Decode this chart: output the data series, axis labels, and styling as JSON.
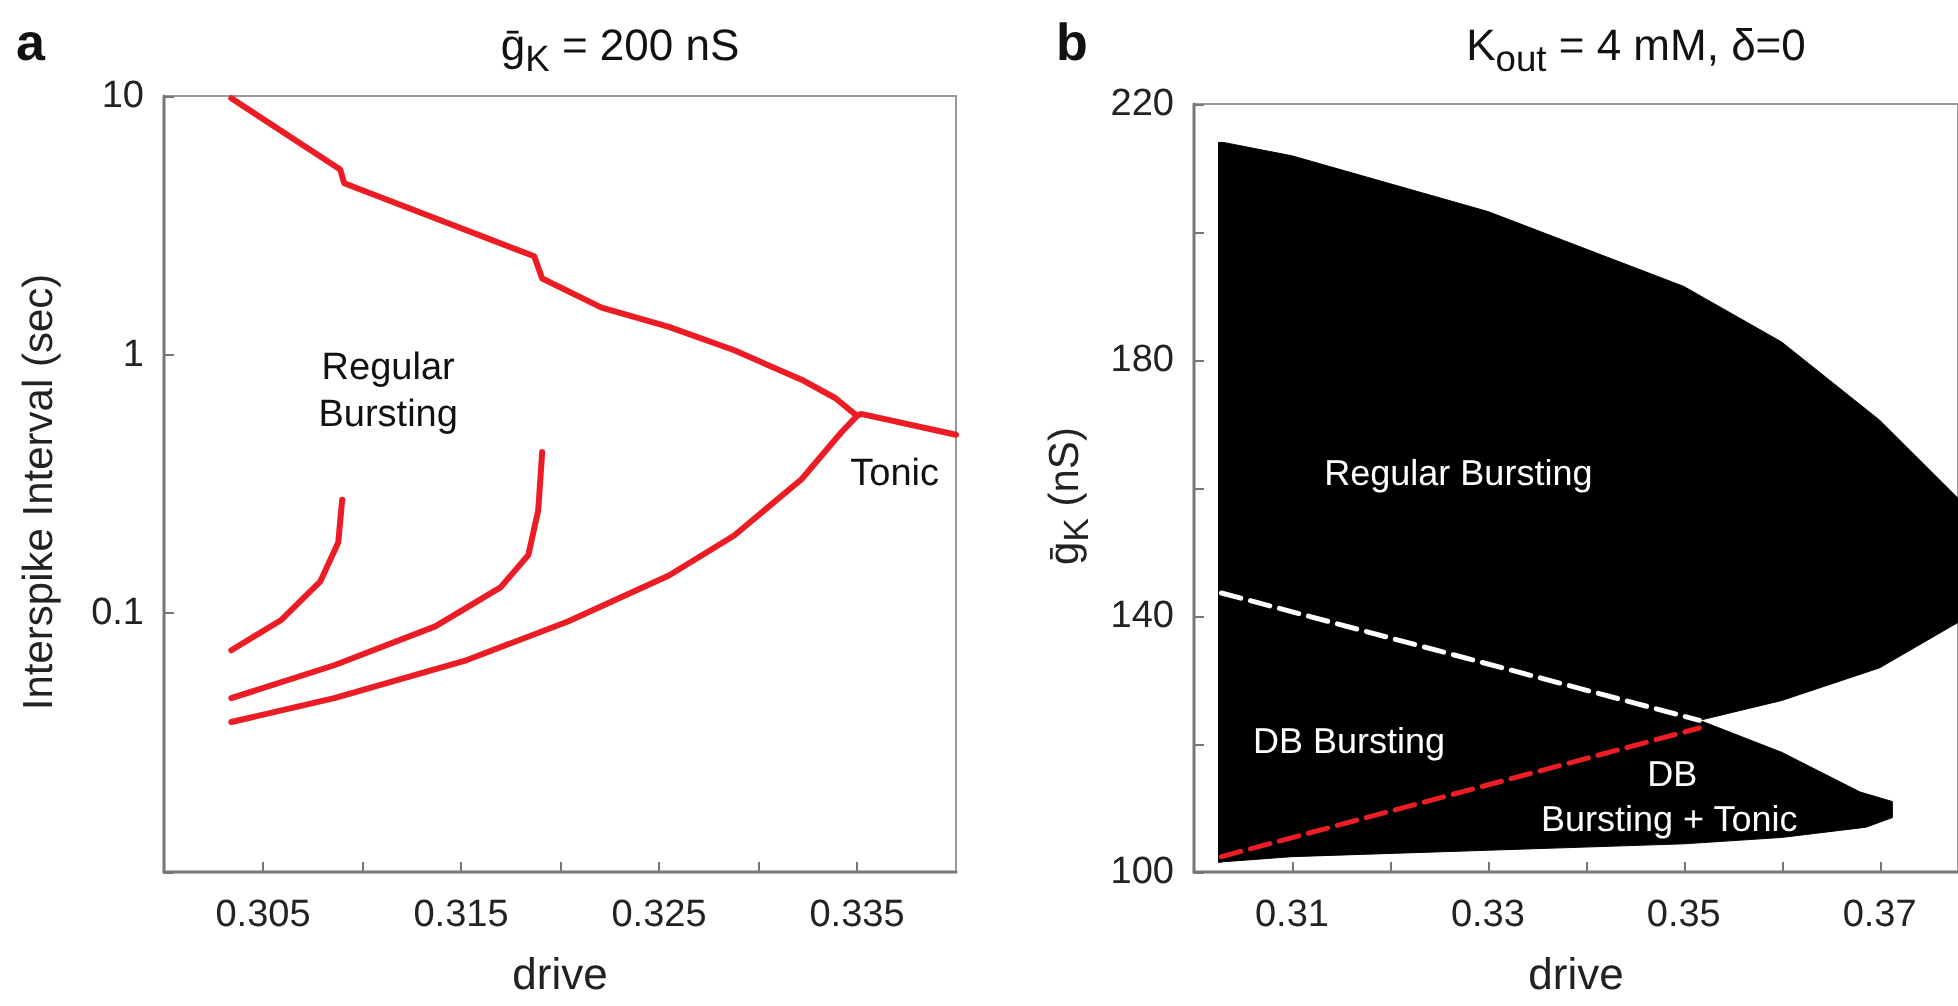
{
  "chart_data": [
    {
      "type": "line",
      "title": "ḡ$_{K}$ = 200 nS",
      "xlabel": "drive",
      "ylabel": "Interspike Interval (sec)",
      "log": "y",
      "xlim": [
        0.3,
        0.34
      ],
      "xticks": [
        0.305,
        {
          "value": 0.31,
          "label": null
        },
        0.315,
        {
          "value": 0.32,
          "label": null
        },
        0.325,
        {
          "value": 0.33,
          "label": null
        },
        0.335
      ],
      "ylim": [
        0.01,
        10
      ],
      "yticks": [
        {
          "value": 0.01,
          "label": null
        },
        0.1,
        1,
        10
      ],
      "annotations": [
        "a",
        "Regular",
        "Bursting",
        "Tonic"
      ],
      "series": [
        {
          "color": "#ec1c24",
          "x": [
            0.3034,
            0.3089,
            0.3091,
            0.3187,
            0.3191,
            0.3221,
            0.3255,
            0.3288,
            0.3322,
            0.3339,
            0.335,
            0.3352,
            0.34
          ],
          "values": [
            9.8,
            5.2,
            4.6,
            2.4,
            1.97,
            1.52,
            1.28,
            1.04,
            0.8,
            0.68,
            0.58,
            0.59,
            0.49
          ]
        },
        {
          "color": "#ec1c24",
          "x": [
            0.3034,
            0.3086,
            0.3153,
            0.3204,
            0.3255,
            0.3288,
            0.3322,
            0.3342,
            0.335
          ],
          "values": [
            0.038,
            0.047,
            0.066,
            0.093,
            0.14,
            0.2,
            0.33,
            0.5,
            0.58
          ]
        },
        {
          "color": "#ec1c24",
          "x": [
            0.3034,
            0.3086,
            0.3137,
            0.317,
            0.3184,
            0.3189,
            0.3191
          ],
          "values": [
            0.047,
            0.063,
            0.089,
            0.126,
            0.168,
            0.25,
            0.42
          ]
        },
        {
          "color": "#ec1c24",
          "x": [
            0.3034,
            0.3059,
            0.3079,
            0.3088,
            0.309
          ],
          "values": [
            0.072,
            0.094,
            0.133,
            0.188,
            0.275
          ]
        }
      ]
    },
    {
      "type": "area",
      "title": "K$_{out}$ = 4 mM, δ=0",
      "xlabel": "drive",
      "ylabel": "ḡ$_{K}$ (nS)",
      "xlim": [
        0.3,
        0.378
      ],
      "xticks": [
        0.31,
        {
          "value": 0.32,
          "label": null
        },
        0.33,
        {
          "value": 0.34,
          "label": null
        },
        0.35,
        {
          "value": 0.36,
          "label": null
        },
        0.37
      ],
      "ylim": [
        100,
        220
      ],
      "yticks": [
        100,
        {
          "value": 120,
          "label": null
        },
        140,
        {
          "value": 160,
          "label": null
        },
        180,
        {
          "value": 200,
          "label": null
        },
        220
      ],
      "annotations": [
        "b",
        "Regular Bursting",
        "DB Bursting",
        "DB",
        "Bursting + Tonic"
      ],
      "series": [
        {
          "color": "#000000",
          "x": [
            0.3025,
            0.303,
            0.31,
            0.33,
            0.35,
            0.36,
            0.37,
            0.378,
            0.378,
            0.37,
            0.36,
            0.3516,
            0.36,
            0.368,
            0.3713,
            0.3713,
            0.3686,
            0.36,
            0.35,
            0.33,
            0.31,
            0.303,
            0.3025
          ],
          "values": [
            214,
            214,
            211.9,
            203.2,
            191.5,
            182.8,
            170.6,
            158.4,
            139,
            131.9,
            126.8,
            123.7,
            118.7,
            112.5,
            111,
            108.5,
            107,
            105.4,
            104.4,
            103.4,
            102.4,
            101.6,
            101.5
          ]
        },
        {
          "type": "line",
          "line_style": "dashed",
          "color": "#ffffff",
          "x": [
            0.3028,
            0.3516
          ],
          "values": [
            143.6,
            123.7
          ]
        },
        {
          "type": "line",
          "line_style": "dashed",
          "color": "#ee1c25",
          "x": [
            0.3028,
            0.3516
          ],
          "values": [
            102.4,
            122.5
          ]
        }
      ]
    }
  ]
}
